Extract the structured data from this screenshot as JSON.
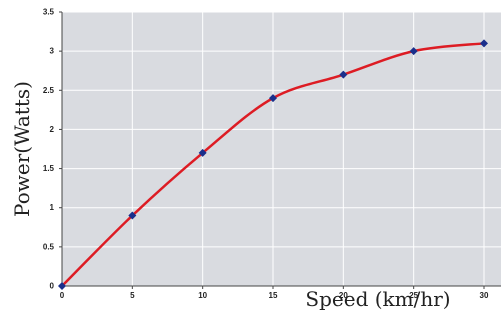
{
  "chart_data": {
    "type": "line",
    "title": "",
    "xlabel": "Speed (km/hr)",
    "ylabel": "Power(Watts)",
    "xlim": [
      0,
      30
    ],
    "ylim": [
      0,
      3.5
    ],
    "x_ticks": [
      "0",
      "5",
      "10",
      "15",
      "20",
      "25",
      "30"
    ],
    "y_ticks": [
      "0",
      "0.5",
      "1",
      "1.5",
      "2",
      "2.5",
      "3",
      "3.5"
    ],
    "grid": true,
    "legend": "none",
    "series": [
      {
        "x": [
          0,
          5,
          10,
          15,
          20,
          25,
          30
        ],
        "values": [
          0,
          0.9,
          1.7,
          2.4,
          2.7,
          3.0,
          3.1
        ]
      }
    ],
    "colors": {
      "plot_background": "#d9dbe0",
      "gridline": "#ffffff",
      "line": "#dd1c24",
      "marker": "#1a2f8c",
      "axis": "#444444"
    }
  }
}
